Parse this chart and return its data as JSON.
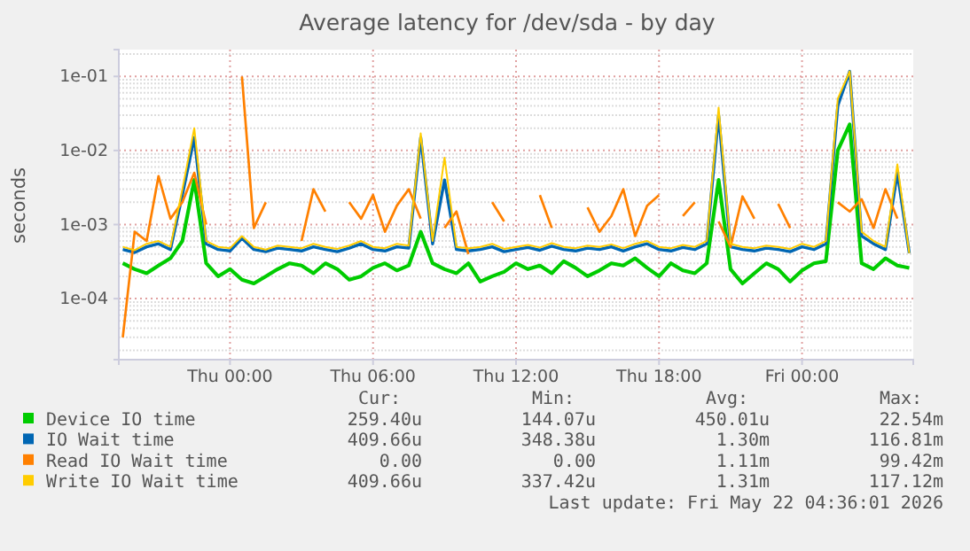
{
  "chart_data": {
    "type": "line",
    "title": "Average latency for /dev/sda - by day",
    "ylabel": "seconds",
    "x": [
      "2026-05-20T19:30",
      "2026-05-20T20:00",
      "2026-05-20T20:30",
      "2026-05-20T21:00",
      "2026-05-20T21:30",
      "2026-05-20T22:00",
      "2026-05-20T22:30",
      "2026-05-20T23:00",
      "2026-05-20T23:30",
      "2026-05-21T00:00",
      "2026-05-21T00:30",
      "2026-05-21T01:00",
      "2026-05-21T01:30",
      "2026-05-21T02:00",
      "2026-05-21T02:30",
      "2026-05-21T03:00",
      "2026-05-21T03:30",
      "2026-05-21T04:00",
      "2026-05-21T04:30",
      "2026-05-21T05:00",
      "2026-05-21T05:30",
      "2026-05-21T06:00",
      "2026-05-21T06:30",
      "2026-05-21T07:00",
      "2026-05-21T07:30",
      "2026-05-21T08:00",
      "2026-05-21T08:30",
      "2026-05-21T09:00",
      "2026-05-21T09:30",
      "2026-05-21T10:00",
      "2026-05-21T10:30",
      "2026-05-21T11:00",
      "2026-05-21T11:30",
      "2026-05-21T12:00",
      "2026-05-21T12:30",
      "2026-05-21T13:00",
      "2026-05-21T13:30",
      "2026-05-21T14:00",
      "2026-05-21T14:30",
      "2026-05-21T15:00",
      "2026-05-21T15:30",
      "2026-05-21T16:00",
      "2026-05-21T16:30",
      "2026-05-21T17:00",
      "2026-05-21T17:30",
      "2026-05-21T18:00",
      "2026-05-21T18:30",
      "2026-05-21T19:00",
      "2026-05-21T19:30",
      "2026-05-21T20:00",
      "2026-05-21T20:30",
      "2026-05-21T21:00",
      "2026-05-21T21:30",
      "2026-05-21T22:00",
      "2026-05-21T22:30",
      "2026-05-21T23:00",
      "2026-05-21T23:30",
      "2026-05-22T00:00",
      "2026-05-22T00:30",
      "2026-05-22T01:00",
      "2026-05-22T01:30",
      "2026-05-22T02:00",
      "2026-05-22T02:30",
      "2026-05-22T03:00",
      "2026-05-22T03:30",
      "2026-05-22T04:00",
      "2026-05-22T04:30"
    ],
    "series": [
      {
        "name": "Device IO time",
        "color": "#00cc00",
        "values": [
          0.0003,
          0.00025,
          0.00022,
          0.00028,
          0.00035,
          0.0006,
          0.004,
          0.0003,
          0.0002,
          0.00025,
          0.00018,
          0.00016,
          0.0002,
          0.00025,
          0.0003,
          0.00028,
          0.00022,
          0.0003,
          0.00025,
          0.00018,
          0.0002,
          0.00026,
          0.0003,
          0.00024,
          0.00028,
          0.0008,
          0.0003,
          0.00025,
          0.00022,
          0.0003,
          0.00017,
          0.0002,
          0.00023,
          0.0003,
          0.00025,
          0.00028,
          0.00022,
          0.00032,
          0.00026,
          0.0002,
          0.00024,
          0.0003,
          0.00028,
          0.00035,
          0.00026,
          0.0002,
          0.0003,
          0.00024,
          0.00022,
          0.0003,
          0.004,
          0.00025,
          0.00016,
          0.00022,
          0.0003,
          0.00025,
          0.00017,
          0.00024,
          0.0003,
          0.00032,
          0.01,
          0.0225,
          0.0003,
          0.00025,
          0.00035,
          0.00028,
          0.00026
        ]
      },
      {
        "name": "IO Wait time",
        "color": "#0066b3",
        "values": [
          0.00046,
          0.00042,
          0.0005,
          0.00055,
          0.00046,
          0.0025,
          0.015,
          0.00055,
          0.00046,
          0.00044,
          0.00065,
          0.00046,
          0.00043,
          0.00048,
          0.00046,
          0.00044,
          0.0005,
          0.00046,
          0.00043,
          0.00048,
          0.00055,
          0.00046,
          0.00044,
          0.0005,
          0.00048,
          0.015,
          0.00055,
          0.004,
          0.00046,
          0.00044,
          0.00046,
          0.0005,
          0.00043,
          0.00046,
          0.00049,
          0.00045,
          0.00051,
          0.00046,
          0.00044,
          0.00048,
          0.00046,
          0.0005,
          0.00044,
          0.0005,
          0.00055,
          0.00046,
          0.00044,
          0.00049,
          0.00046,
          0.00055,
          0.03,
          0.0005,
          0.00046,
          0.00044,
          0.00048,
          0.00046,
          0.00043,
          0.0005,
          0.00046,
          0.00055,
          0.04,
          0.1168,
          0.0007,
          0.00055,
          0.00046,
          0.005,
          0.00041
        ]
      },
      {
        "name": "Read IO Wait time",
        "color": "#ff8000",
        "values": [
          3e-05,
          0.0008,
          0.0006,
          0.0045,
          0.0012,
          0.002,
          0.005,
          0.001,
          null,
          null,
          0.0994,
          0.0009,
          0.002,
          null,
          null,
          0.0006,
          0.003,
          0.0015,
          null,
          0.002,
          0.0012,
          0.0025,
          0.0008,
          0.0018,
          0.003,
          0.0012,
          null,
          0.0009,
          0.0015,
          0.0004,
          null,
          0.002,
          0.0011,
          null,
          null,
          0.0025,
          0.0009,
          null,
          null,
          0.0017,
          0.0008,
          0.0013,
          0.003,
          0.0007,
          0.0018,
          0.0025,
          null,
          0.0013,
          0.002,
          null,
          0.0011,
          0.0005,
          0.0024,
          0.0012,
          null,
          0.0019,
          0.0009,
          null,
          null,
          null,
          0.002,
          0.0015,
          0.0022,
          0.0009,
          0.003,
          0.0012,
          null
        ]
      },
      {
        "name": "Write IO Wait time",
        "color": "#ffcc00",
        "values": [
          0.0005,
          0.00045,
          0.00055,
          0.0006,
          0.0005,
          0.003,
          0.02,
          0.0006,
          0.0005,
          0.00048,
          0.0007,
          0.0005,
          0.00046,
          0.00052,
          0.0005,
          0.00048,
          0.00055,
          0.0005,
          0.00047,
          0.00052,
          0.0006,
          0.0005,
          0.00048,
          0.00055,
          0.00052,
          0.017,
          0.0006,
          0.008,
          0.0005,
          0.00048,
          0.0005,
          0.00055,
          0.00047,
          0.0005,
          0.00053,
          0.00049,
          0.00056,
          0.0005,
          0.00048,
          0.00052,
          0.0005,
          0.00054,
          0.00048,
          0.00055,
          0.0006,
          0.0005,
          0.00048,
          0.00053,
          0.0005,
          0.0006,
          0.038,
          0.00055,
          0.0005,
          0.00048,
          0.00052,
          0.0005,
          0.00047,
          0.00055,
          0.0005,
          0.0006,
          0.05,
          0.1171,
          0.0008,
          0.0006,
          0.0005,
          0.0065,
          0.00041
        ]
      }
    ],
    "xlim": [
      "2026-05-20T19:20",
      "2026-05-22T04:40"
    ],
    "xticks": [
      {
        "value": "2026-05-21T00:00",
        "label": "Thu 00:00"
      },
      {
        "value": "2026-05-21T06:00",
        "label": "Thu 06:00"
      },
      {
        "value": "2026-05-21T12:00",
        "label": "Thu 12:00"
      },
      {
        "value": "2026-05-21T18:00",
        "label": "Thu 18:00"
      },
      {
        "value": "2026-05-22T00:00",
        "label": "Fri 00:00"
      }
    ],
    "ylim": [
      1.5e-05,
      0.23
    ],
    "yticks": [
      {
        "value": 0.0001,
        "label": "1e-04"
      },
      {
        "value": 0.001,
        "label": "1e-03"
      },
      {
        "value": 0.01,
        "label": "1e-02"
      },
      {
        "value": 0.1,
        "label": "1e-01"
      }
    ],
    "log": true,
    "grid": true,
    "legend": "bottom",
    "annotations": [
      "Cur:",
      "Min:",
      "Avg:",
      "Max:",
      "259.40u",
      "144.07u",
      "450.01u",
      "22.54m",
      "409.66u",
      "348.38u",
      "1.30m",
      "116.81m",
      "0.00",
      "0.00",
      "1.11m",
      "99.42m",
      "409.66u",
      "337.42u",
      "1.31m",
      "117.12m",
      "Last update: Fri May 22 04:36:01 2026"
    ]
  }
}
